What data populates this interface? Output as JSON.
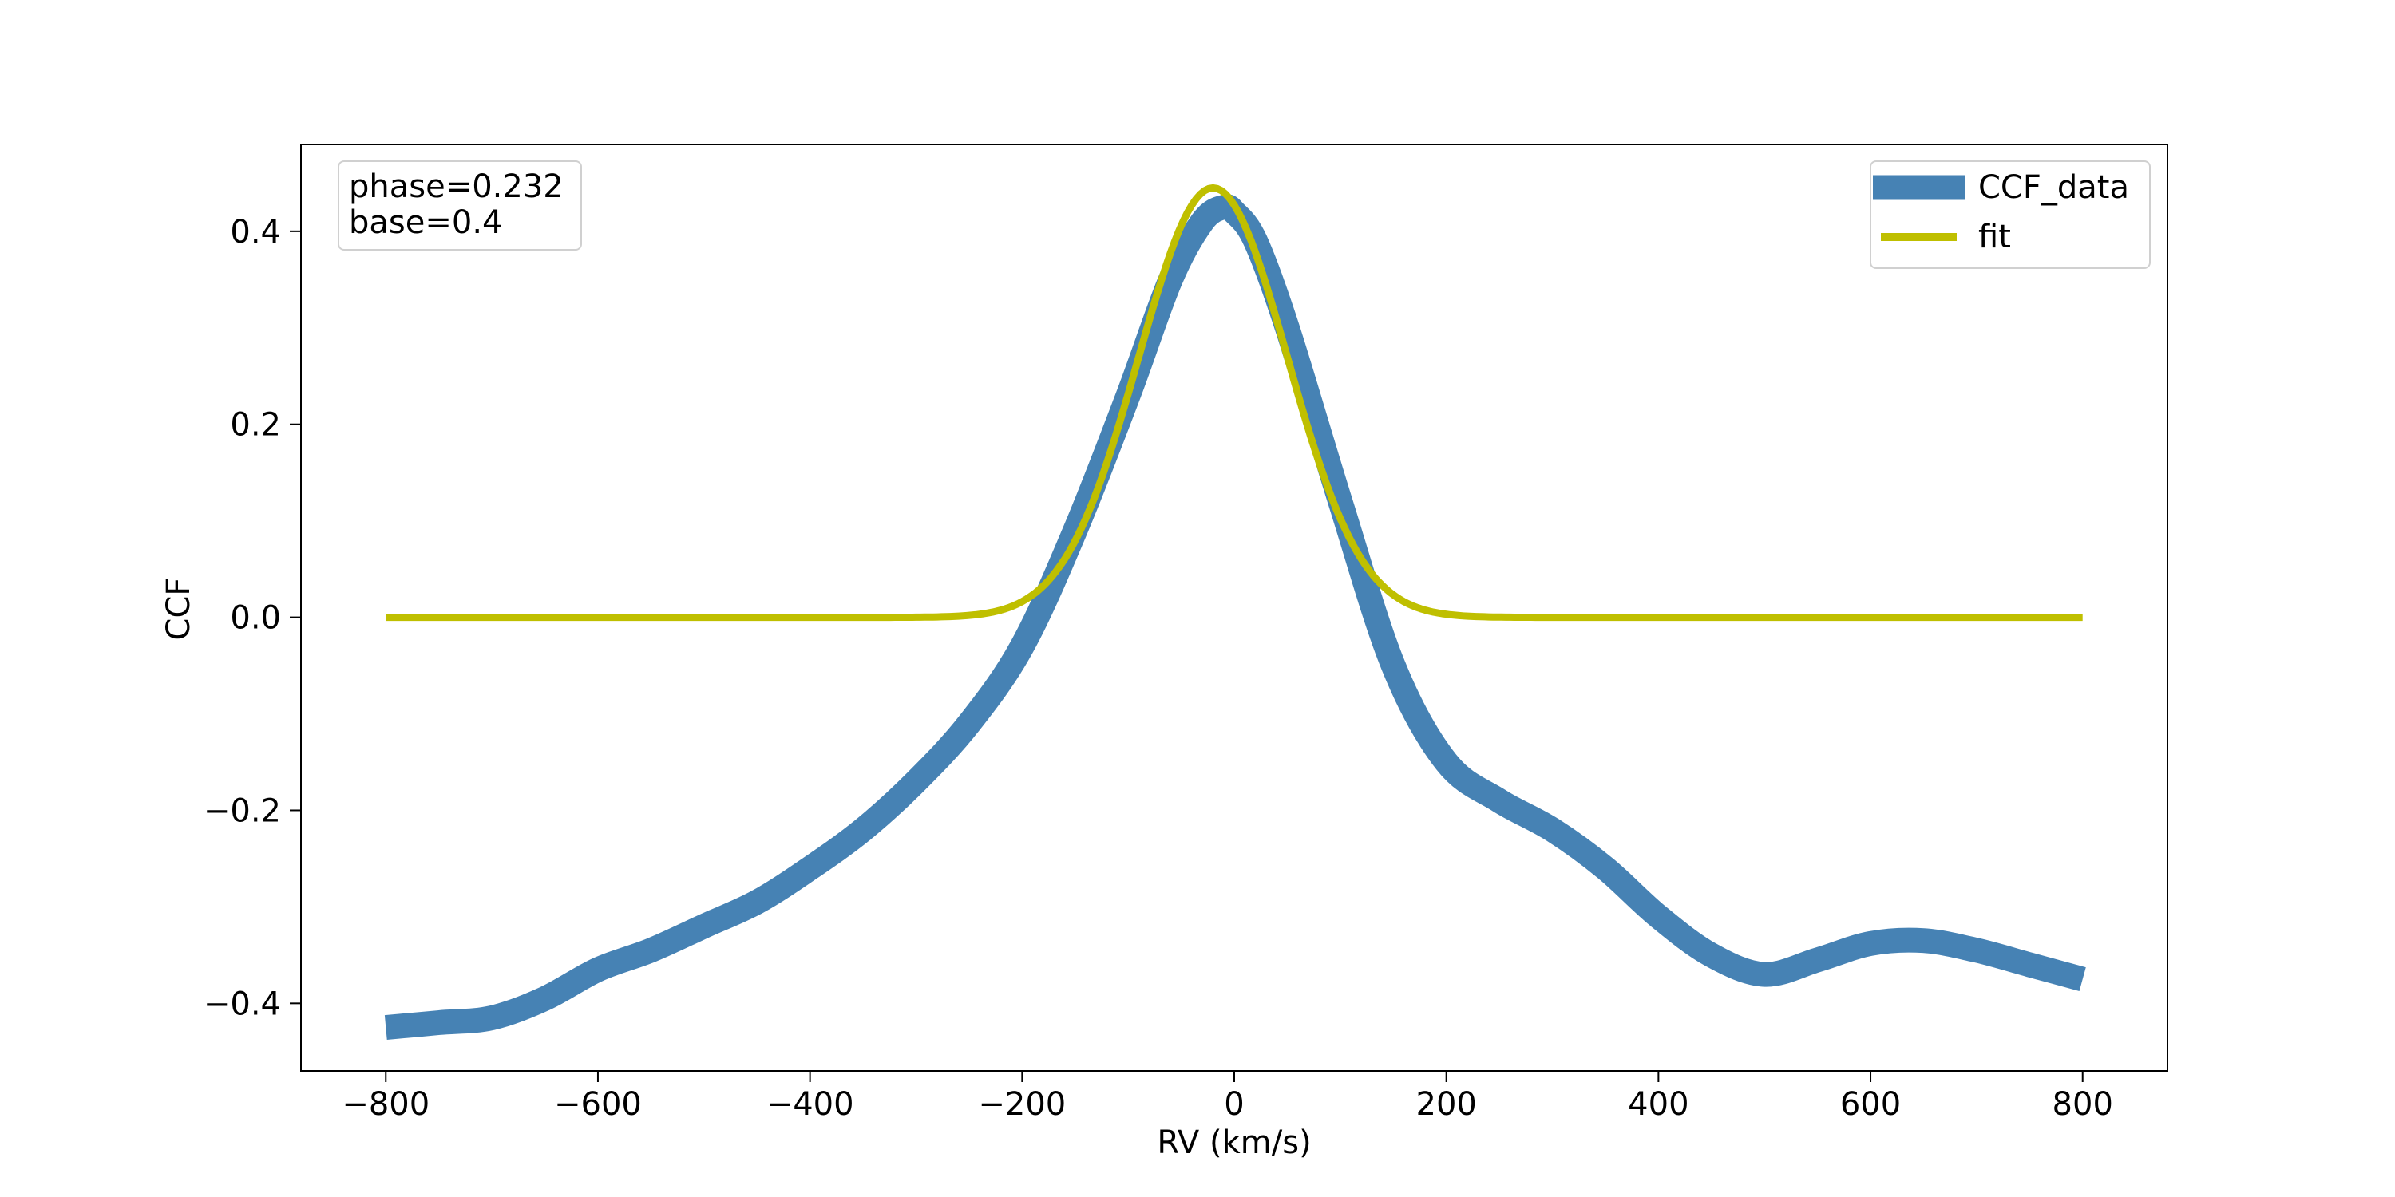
{
  "chart_data": {
    "type": "line",
    "xlabel": "RV (km/s)",
    "ylabel": "CCF",
    "xlim": [
      -880,
      880
    ],
    "ylim": [
      -0.47,
      0.49
    ],
    "x_ticks": [
      -800,
      -600,
      -400,
      -200,
      0,
      200,
      400,
      600,
      800
    ],
    "x_tick_labels": [
      "−800",
      "−600",
      "−400",
      "−200",
      "0",
      "200",
      "400",
      "600",
      "800"
    ],
    "y_ticks": [
      -0.4,
      -0.2,
      0.0,
      0.2,
      0.4
    ],
    "y_tick_labels": [
      "−0.4",
      "−0.2",
      "0.0",
      "0.2",
      "0.4"
    ],
    "grid": false,
    "annotation": {
      "lines": [
        "phase=0.232",
        "base=0.4"
      ],
      "placement": "top-left"
    },
    "legend": {
      "placement": "top-right"
    },
    "series": [
      {
        "name": "CCF_data",
        "color": "#4682b4",
        "style": "thick line",
        "x": [
          -800,
          -750,
          -700,
          -650,
          -600,
          -550,
          -500,
          -450,
          -400,
          -350,
          -300,
          -250,
          -200,
          -150,
          -100,
          -60,
          -30,
          -10,
          0,
          20,
          50,
          100,
          150,
          200,
          250,
          300,
          350,
          400,
          450,
          500,
          550,
          600,
          650,
          700,
          750,
          800
        ],
        "y": [
          -0.425,
          -0.42,
          -0.415,
          -0.395,
          -0.365,
          -0.345,
          -0.32,
          -0.295,
          -0.26,
          -0.22,
          -0.17,
          -0.11,
          -0.03,
          0.09,
          0.23,
          0.35,
          0.41,
          0.425,
          0.42,
          0.39,
          0.3,
          0.12,
          -0.05,
          -0.15,
          -0.19,
          -0.22,
          -0.26,
          -0.31,
          -0.35,
          -0.37,
          -0.355,
          -0.338,
          -0.335,
          -0.345,
          -0.36,
          -0.375
        ]
      },
      {
        "name": "fit",
        "color": "#bfbf00",
        "style": "line",
        "function": "gaussian",
        "center": -20,
        "amplitude": 0.445,
        "sigma": 70,
        "x_range": [
          -800,
          800
        ]
      }
    ]
  }
}
